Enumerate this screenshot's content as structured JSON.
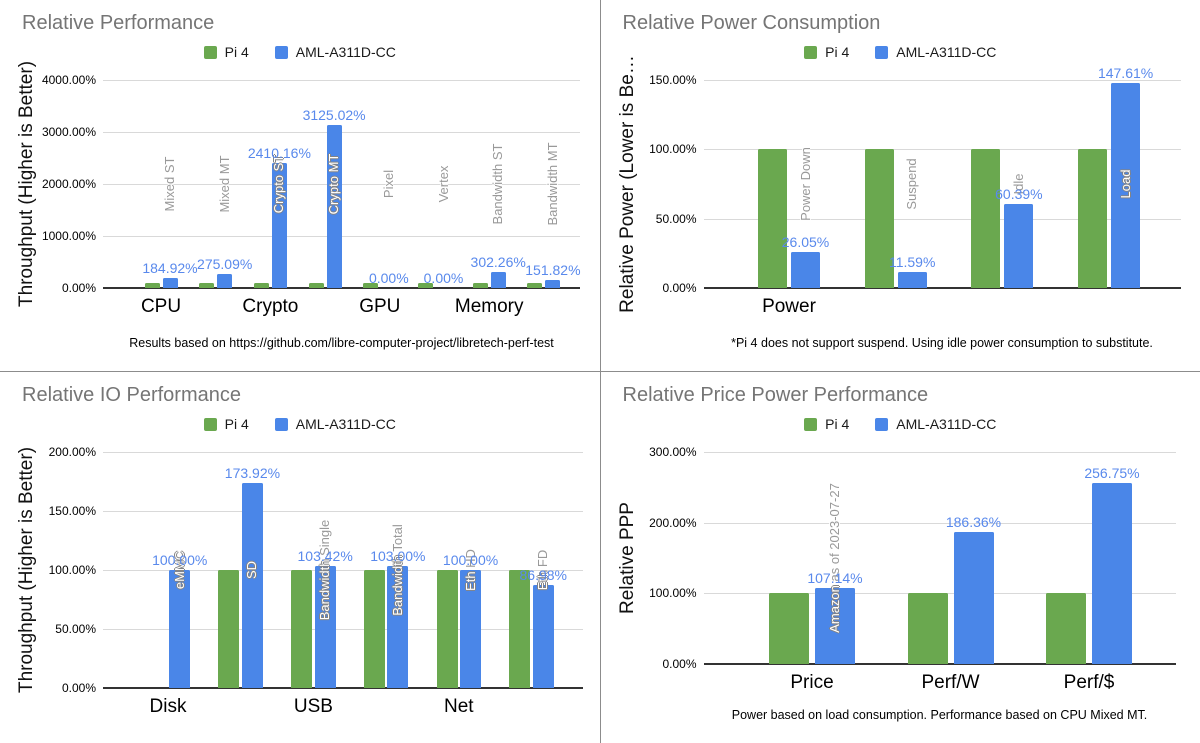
{
  "series": {
    "pi4": "Pi 4",
    "aml": "AML-A311D-CC"
  },
  "colors": {
    "pi4": "#6aa84f",
    "aml": "#4a86e8",
    "value_label": "#5989ec",
    "annotation_gray": "#999999",
    "title": "#757575",
    "gridline": "#d9d9d9"
  },
  "chart_data": [
    {
      "type": "bar",
      "title": "Relative Performance",
      "ylabel": "Throughput (Higher is Better)",
      "ymax": 4000,
      "yticks": [
        {
          "value": 0,
          "label": "0.00%"
        },
        {
          "value": 1000,
          "label": "1000.00%"
        },
        {
          "value": 2000,
          "label": "2000.00%"
        },
        {
          "value": 3000,
          "label": "3000.00%"
        },
        {
          "value": 4000,
          "label": "4000.00%"
        }
      ],
      "legend": [
        "Pi 4",
        "AML-A311D-CC"
      ],
      "footnote": "Results based on https://github.com/libre-computer-project/libretech-perf-test",
      "groups": [
        {
          "label": "CPU",
          "bars": [
            {
              "name": "Mixed ST",
              "name_inside": "",
              "pi4": 100,
              "aml": 184.92,
              "aml_label": "184.92%"
            },
            {
              "name": "Mixed MT",
              "name_inside": "",
              "pi4": 100,
              "aml": 275.09,
              "aml_label": "275.09%"
            }
          ]
        },
        {
          "label": "Crypto",
          "bars": [
            {
              "name": "Crypto ST",
              "name_inside": "Crypto ST",
              "pi4": 100,
              "aml": 2410.16,
              "aml_label": "2410.16%"
            },
            {
              "name": "Crypto MT",
              "name_inside": "Crypto MT",
              "pi4": 100,
              "aml": 3125.02,
              "aml_label": "3125.02%"
            }
          ]
        },
        {
          "label": "GPU",
          "bars": [
            {
              "name": "Pixel",
              "name_inside": "",
              "pi4": 100,
              "aml": 0,
              "aml_label": "0.00%"
            },
            {
              "name": "Vertex",
              "name_inside": "",
              "pi4": 100,
              "aml": 0,
              "aml_label": "0.00%"
            }
          ]
        },
        {
          "label": "Memory",
          "bars": [
            {
              "name": "Bandwidth ST",
              "name_inside": "",
              "pi4": 100,
              "aml": 302.26,
              "aml_label": "302.26%"
            },
            {
              "name": "Bandwidth MT",
              "name_inside": "",
              "pi4": 100,
              "aml": 151.82,
              "aml_label": "151.82%"
            }
          ]
        }
      ]
    },
    {
      "type": "bar",
      "title": "Relative Power Consumption",
      "ylabel": "Relative Power (Lower is Be…",
      "ymax": 150,
      "yticks": [
        {
          "value": 0,
          "label": "0.00%"
        },
        {
          "value": 50,
          "label": "50.00%"
        },
        {
          "value": 100,
          "label": "100.00%"
        },
        {
          "value": 150,
          "label": "150.00%"
        }
      ],
      "legend": [
        "Pi 4",
        "AML-A311D-CC"
      ],
      "footnote": "*Pi 4 does not support suspend. Using idle power consumption to substitute.",
      "groups": [
        {
          "label": "Power",
          "bars": [
            {
              "name": "Power Down",
              "name_inside": "",
              "pi4": 100,
              "aml": 26.05,
              "aml_label": "26.05%"
            },
            {
              "name": "Suspend",
              "name_inside": "",
              "pi4": 100,
              "aml": 11.59,
              "aml_label": "11.59%"
            },
            {
              "name": "Idle",
              "name_inside": "",
              "pi4": 100,
              "aml": 60.39,
              "aml_label": "60.39%"
            },
            {
              "name": "Load",
              "name_inside": "Load",
              "pi4": 100,
              "aml": 147.61,
              "aml_label": "147.61%"
            }
          ]
        }
      ]
    },
    {
      "type": "bar",
      "title": "Relative IO Performance",
      "ylabel": "Throughput (Higher is Better)",
      "ymax": 200,
      "yticks": [
        {
          "value": 0,
          "label": "0.00%"
        },
        {
          "value": 50,
          "label": "50.00%"
        },
        {
          "value": 100,
          "label": "100.00%"
        },
        {
          "value": 150,
          "label": "150.00%"
        },
        {
          "value": 200,
          "label": "200.00%"
        }
      ],
      "legend": [
        "Pi 4",
        "AML-A311D-CC"
      ],
      "footnote": "",
      "groups": [
        {
          "label": "Disk",
          "bars": [
            {
              "name": "eMMC",
              "name_inside": "eMMC",
              "pi4": null,
              "aml": 100,
              "aml_label": "100.00%"
            },
            {
              "name": "SD",
              "name_inside": "SD",
              "pi4": 100,
              "aml": 173.92,
              "aml_label": "173.92%"
            }
          ]
        },
        {
          "label": "USB",
          "bars": [
            {
              "name": "Bandwidth Single",
              "name_inside": "Bandwidth",
              "pi4": 100,
              "aml": 103.42,
              "aml_label": "103.42%"
            },
            {
              "name": "Bandwidth Total",
              "name_inside": "Bandwidth",
              "pi4": 100,
              "aml": 103.0,
              "aml_label": "103.00%"
            }
          ]
        },
        {
          "label": "Net",
          "bars": [
            {
              "name": "Eth HD",
              "name_inside": "Eth",
              "pi4": 100,
              "aml": 100,
              "aml_label": "100.00%"
            },
            {
              "name": "Eth FD",
              "name_inside": "Eth",
              "pi4": 100,
              "aml": 86.98,
              "aml_label": "86.98%"
            }
          ]
        }
      ]
    },
    {
      "type": "bar",
      "title": "Relative Price Power Performance",
      "ylabel": "Relative PPP",
      "ymax": 300,
      "yticks": [
        {
          "value": 0,
          "label": "0.00%"
        },
        {
          "value": 100,
          "label": "100.00%"
        },
        {
          "value": 200,
          "label": "200.00%"
        },
        {
          "value": 300,
          "label": "300.00%"
        }
      ],
      "legend": [
        "Pi 4",
        "AML-A311D-CC"
      ],
      "footnote": "Power based on load consumption. Performance based on CPU Mixed MT.",
      "groups": [
        {
          "label": "Price",
          "bars": [
            {
              "name": "Amazon as of 2023-07-27",
              "name_inside": "Amazon",
              "pi4": 100,
              "aml": 107.14,
              "aml_label": "107.14%"
            }
          ]
        },
        {
          "label": "Perf/W",
          "bars": [
            {
              "name": "",
              "name_inside": "",
              "pi4": 100,
              "aml": 186.36,
              "aml_label": "186.36%"
            }
          ]
        },
        {
          "label": "Perf/$",
          "bars": [
            {
              "name": "",
              "name_inside": "",
              "pi4": 100,
              "aml": 256.75,
              "aml_label": "256.75%"
            }
          ]
        }
      ]
    }
  ]
}
